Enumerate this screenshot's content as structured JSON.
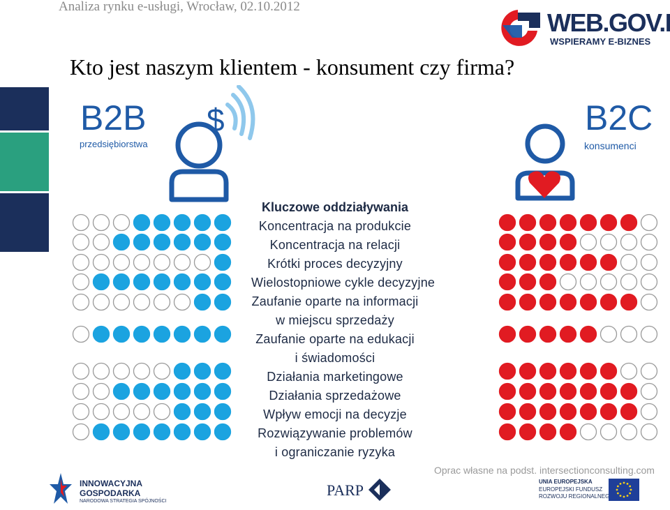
{
  "header": {
    "caption": "Analiza rynku e-usługi, Wrocław, 02.10.2012",
    "logo_main": "WEB.GOV.PL",
    "logo_tagline": "WSPIERAMY E-BIZNES"
  },
  "title": "Kto jest naszym klientem - konsument czy firma?",
  "b2b": {
    "label": "B2B",
    "sub": "przedsiębiorstwa",
    "symbol": "$"
  },
  "b2c": {
    "label": "B2C",
    "sub": "konsumenci"
  },
  "center": {
    "heading": "Kluczowe oddziaływania",
    "lines": [
      "Koncentracja na produkcie",
      "Koncentracja na relacji",
      "Krótki proces decyzyjny",
      "Wielostopniowe cykle decyzyjne",
      "Zaufanie oparte na informacji",
      "w miejscu sprzedaży",
      "Zaufanie oparte na edukacji",
      "i świadomości",
      "Działania marketingowe",
      "Działania sprzedażowe",
      "Wpływ emocji na decyzje",
      "Rozwiązywanie problemów",
      "i ograniczanie ryzyka"
    ]
  },
  "ratings": {
    "rows": [
      {
        "b2b": 5,
        "b2c": 7
      },
      {
        "b2b": 6,
        "b2c": 4
      },
      {
        "b2b": 1,
        "b2c": 6
      },
      {
        "b2b": 7,
        "b2c": 3
      },
      {
        "b2b": 2,
        "b2c": 7
      },
      {
        "b2b": 7,
        "b2c": 5
      },
      {
        "b2b": 3,
        "b2c": 6
      },
      {
        "b2b": 6,
        "b2c": 7
      },
      {
        "b2b": 3,
        "b2c": 7
      },
      {
        "b2b": 7,
        "b2c": 4
      }
    ],
    "max": 8
  },
  "colors": {
    "b2b_fill": "#1ba3e0",
    "b2c_fill": "#e11b22",
    "empty_stroke": "#9a9a9a",
    "accent_blue": "#1f5aa6",
    "sidebar_navy": "#1b2f5b",
    "sidebar_teal": "#2aa07f"
  },
  "icons": [
    "b2b-person-icon",
    "wifi-signal-icon",
    "b2c-person-icon",
    "heart-icon"
  ],
  "footer": {
    "source": "Oprac własne na podst. intersectionconsulting.com",
    "ig_line1": "INNOWACYJNA",
    "ig_line2": "GOSPODARKA",
    "ig_line3": "NARODOWA STRATEGIA SPÓJNOŚCI",
    "parp": "PARP",
    "ue_line1": "UNIA EUROPEJSKA",
    "ue_line2": "EUROPEJSKI FUNDUSZ",
    "ue_line3": "ROZWOJU REGIONALNEGO"
  }
}
